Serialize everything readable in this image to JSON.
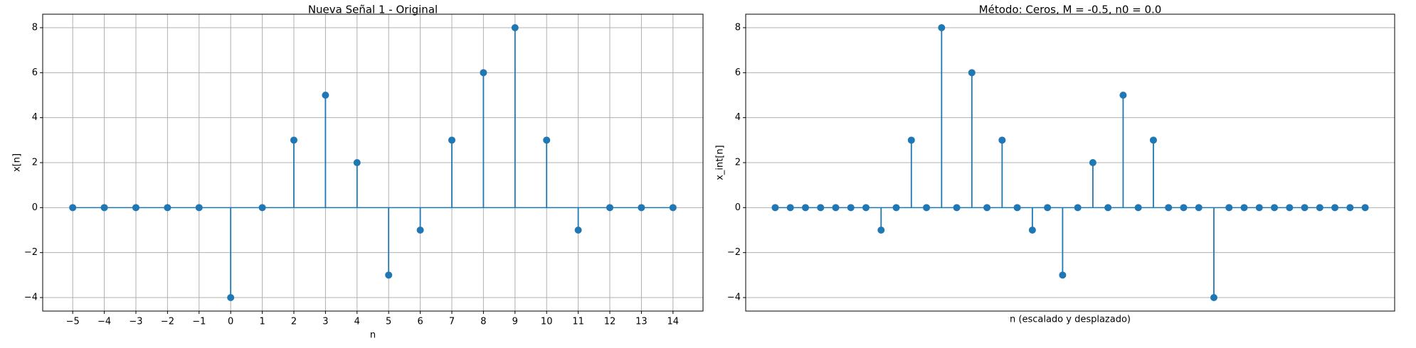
{
  "chart_data": [
    {
      "type": "stem",
      "title": "Nueva Señal 1 - Original",
      "xlabel": "n",
      "ylabel": "x[n]",
      "x": [
        -5,
        -4,
        -3,
        -2,
        -1,
        0,
        1,
        2,
        3,
        4,
        5,
        6,
        7,
        8,
        9,
        10,
        11,
        12,
        13,
        14
      ],
      "values": [
        0,
        0,
        0,
        0,
        0,
        -4,
        0,
        3,
        5,
        2,
        -3,
        -1,
        3,
        6,
        8,
        3,
        -1,
        0,
        0,
        0
      ],
      "color": "#1f77b4",
      "xlim": [
        -5.95,
        14.95
      ],
      "xticks": [
        {
          "value": -5,
          "label": "−5"
        },
        {
          "value": -4,
          "label": "−4"
        },
        {
          "value": -3,
          "label": "−3"
        },
        {
          "value": -2,
          "label": "−2"
        },
        {
          "value": -1,
          "label": "−1"
        },
        0,
        1,
        2,
        3,
        4,
        5,
        6,
        7,
        8,
        9,
        10,
        11,
        12,
        13,
        14
      ],
      "ylim": [
        -4.6,
        8.6
      ],
      "yticks": [
        {
          "value": -4,
          "label": "−4"
        },
        {
          "value": -2,
          "label": "−2"
        },
        0,
        2,
        4,
        6,
        8
      ],
      "grid": "both"
    },
    {
      "type": "stem",
      "title": "Método: Ceros, M = -0.5, n0 = 0.0",
      "xlabel": "n (escalado y desplazado)",
      "ylabel": "x_int[n]",
      "values": [
        0,
        0,
        0,
        0,
        0,
        0,
        0,
        -1,
        0,
        3,
        0,
        8,
        0,
        6,
        0,
        3,
        0,
        -1,
        0,
        -3,
        0,
        2,
        0,
        5,
        0,
        3,
        0,
        0,
        0,
        -4,
        0,
        0,
        0,
        0,
        0,
        0,
        0,
        0,
        0,
        0
      ],
      "color": "#1f77b4",
      "ylim": [
        -4.6,
        8.6
      ],
      "yticks": [
        {
          "value": -4,
          "label": "−4"
        },
        {
          "value": -2,
          "label": "−2"
        },
        0,
        2,
        4,
        6,
        8
      ],
      "grid": "y"
    }
  ]
}
